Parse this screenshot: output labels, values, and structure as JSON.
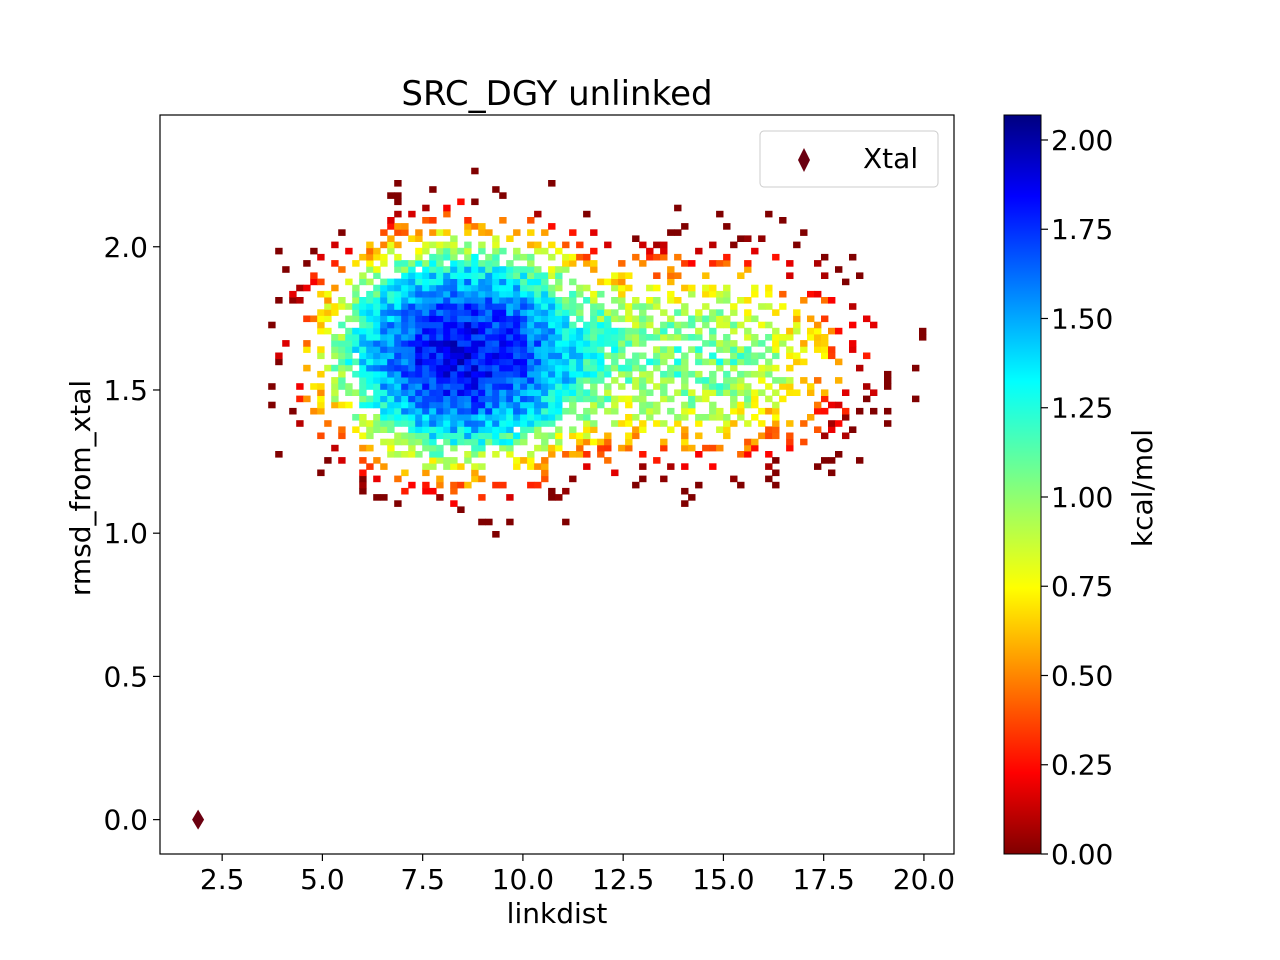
{
  "chart_data": {
    "type": "heatmap",
    "title": "SRC_DGY unlinked",
    "xlabel": "linkdist",
    "ylabel": "rmsd_from_xtal",
    "xlim": [
      0.95,
      20.75
    ],
    "ylim": [
      -0.12,
      2.46
    ],
    "xticks": [
      2.5,
      5.0,
      7.5,
      10.0,
      12.5,
      15.0,
      17.5,
      20.0
    ],
    "yticks": [
      0.0,
      0.5,
      1.0,
      1.5,
      2.0
    ],
    "xtick_labels": [
      "2.5",
      "5.0",
      "7.5",
      "10.0",
      "12.5",
      "15.0",
      "17.5",
      "20.0"
    ],
    "ytick_labels": [
      "0.0",
      "0.5",
      "1.0",
      "1.5",
      "2.0"
    ],
    "grid": false,
    "colormap": "jet",
    "colorbar": {
      "label": "kcal/mol",
      "range": [
        0.0,
        2.07
      ],
      "ticks": [
        0.0,
        0.25,
        0.5,
        0.75,
        1.0,
        1.25,
        1.5,
        1.75,
        2.0
      ],
      "tick_labels": [
        "0.00",
        "0.25",
        "0.50",
        "0.75",
        "1.00",
        "1.25",
        "1.50",
        "1.75",
        "2.00"
      ]
    },
    "density_clusters": [
      {
        "center": [
          8.4,
          1.62
        ],
        "spread": [
          1.9,
          0.22
        ],
        "min_energy": 0.15
      },
      {
        "center": [
          14.5,
          1.6
        ],
        "spread": [
          2.3,
          0.22
        ],
        "min_energy": 0.7
      }
    ],
    "distribution_extent": {
      "x": [
        3.3,
        20.7
      ],
      "y": [
        0.9,
        2.46
      ]
    },
    "series": [
      {
        "name": "Xtal",
        "type": "scatter",
        "marker": "diamond",
        "color": "#6b0010",
        "x": [
          1.9
        ],
        "y": [
          0.0
        ]
      }
    ],
    "legend": {
      "placement": "top-right",
      "entries": [
        "Xtal"
      ]
    }
  }
}
